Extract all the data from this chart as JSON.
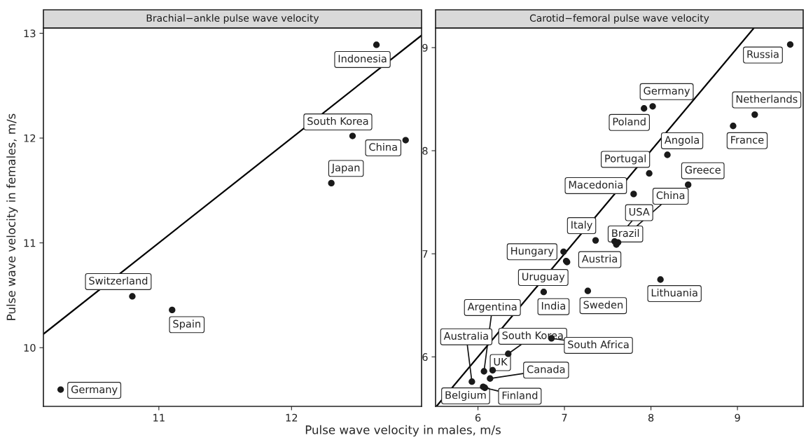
{
  "chart_data": [
    {
      "type": "scatter",
      "title": "Brachial−ankle pulse wave velocity",
      "xlabel": "Pulse wave velocity in males, m/s",
      "ylabel": "Pulse wave velocity in females, m/s",
      "xlim": [
        10.13,
        12.98
      ],
      "ylim": [
        9.44,
        13.05
      ],
      "xticks": [
        11,
        12
      ],
      "yticks": [
        10,
        11,
        12,
        13
      ],
      "grid": false,
      "series": [
        {
          "marker": "circle",
          "color": "#1a1a1a",
          "x": [
            12.64,
            12.46,
            12.86,
            12.3,
            10.8,
            11.1,
            10.26
          ],
          "values": [
            12.89,
            12.02,
            11.98,
            11.57,
            10.49,
            10.36,
            9.6
          ]
        },
        {
          "type": "line",
          "color": "#000000",
          "x": [
            10.13,
            12.98
          ],
          "values": [
            10.13,
            12.98
          ]
        }
      ],
      "annotations": [
        {
          "text": "Indonesia",
          "x": 12.64,
          "y": 12.89
        },
        {
          "text": "South Korea",
          "x": 12.46,
          "y": 12.02
        },
        {
          "text": "China",
          "x": 12.86,
          "y": 11.98
        },
        {
          "text": "Japan",
          "x": 12.3,
          "y": 11.57
        },
        {
          "text": "Switzerland",
          "x": 10.8,
          "y": 10.49
        },
        {
          "text": "Spain",
          "x": 11.1,
          "y": 10.36
        },
        {
          "text": "Germany",
          "x": 10.26,
          "y": 9.6
        }
      ]
    },
    {
      "type": "scatter",
      "title": "Carotid−femoral pulse wave velocity",
      "xlim": [
        5.51,
        9.76
      ],
      "ylim": [
        5.52,
        9.19
      ],
      "xticks": [
        6,
        7,
        8,
        9
      ],
      "yticks": [
        6,
        7,
        8,
        9
      ],
      "grid": false,
      "series": [
        {
          "marker": "circle",
          "color": "#1a1a1a",
          "x": [
            9.61,
            8.02,
            7.92,
            9.2,
            8.95,
            8.19,
            7.98,
            8.43,
            7.8,
            7.62,
            7.58,
            7.36,
            7.6,
            6.99,
            7.02,
            7.03,
            6.76,
            7.27,
            8.11,
            6.07,
            5.93,
            6.35,
            6.85,
            6.17,
            6.14,
            6.06,
            6.08
          ],
          "values": [
            9.03,
            8.43,
            8.41,
            8.35,
            8.24,
            7.96,
            7.78,
            7.67,
            7.58,
            7.11,
            7.12,
            7.13,
            7.09,
            7.02,
            6.93,
            6.92,
            6.63,
            6.64,
            6.75,
            5.86,
            5.76,
            6.03,
            6.18,
            5.87,
            5.79,
            5.71,
            5.7
          ]
        },
        {
          "type": "line",
          "color": "#000000",
          "x": [
            5.52,
            9.19
          ],
          "values": [
            5.52,
            9.19
          ]
        }
      ],
      "annotations": [
        {
          "text": "Russia",
          "x": 9.61,
          "y": 9.03
        },
        {
          "text": "Germany",
          "x": 8.02,
          "y": 8.43
        },
        {
          "text": "Poland",
          "x": 7.92,
          "y": 8.41
        },
        {
          "text": "Netherlands",
          "x": 9.2,
          "y": 8.35
        },
        {
          "text": "France",
          "x": 8.95,
          "y": 8.24
        },
        {
          "text": "Angola",
          "x": 8.19,
          "y": 7.96
        },
        {
          "text": "Portugal",
          "x": 7.98,
          "y": 7.78
        },
        {
          "text": "Greece",
          "x": 8.43,
          "y": 7.67
        },
        {
          "text": "Macedonia",
          "x": 7.8,
          "y": 7.58
        },
        {
          "text": "China",
          "x": 7.62,
          "y": 7.11
        },
        {
          "text": "USA",
          "x": 7.58,
          "y": 7.12
        },
        {
          "text": "Italy",
          "x": 7.36,
          "y": 7.13
        },
        {
          "text": "Brazil",
          "x": 7.6,
          "y": 7.09
        },
        {
          "text": "Hungary",
          "x": 6.99,
          "y": 7.02
        },
        {
          "text": "Austria",
          "x": 7.02,
          "y": 6.93
        },
        {
          "text": "Uruguay",
          "x": 7.03,
          "y": 6.92
        },
        {
          "text": "India",
          "x": 6.76,
          "y": 6.63
        },
        {
          "text": "Sweden",
          "x": 7.27,
          "y": 6.64
        },
        {
          "text": "Lithuania",
          "x": 8.11,
          "y": 6.75
        },
        {
          "text": "Argentina",
          "x": 6.07,
          "y": 5.86
        },
        {
          "text": "Australia",
          "x": 5.93,
          "y": 5.76
        },
        {
          "text": "South Korea",
          "x": 6.35,
          "y": 6.03
        },
        {
          "text": "South Africa",
          "x": 6.85,
          "y": 6.18
        },
        {
          "text": "UK",
          "x": 6.17,
          "y": 5.87
        },
        {
          "text": "Canada",
          "x": 6.14,
          "y": 5.79
        },
        {
          "text": "Belgium",
          "x": 6.06,
          "y": 5.71
        },
        {
          "text": "Finland",
          "x": 6.08,
          "y": 5.7
        }
      ]
    }
  ]
}
